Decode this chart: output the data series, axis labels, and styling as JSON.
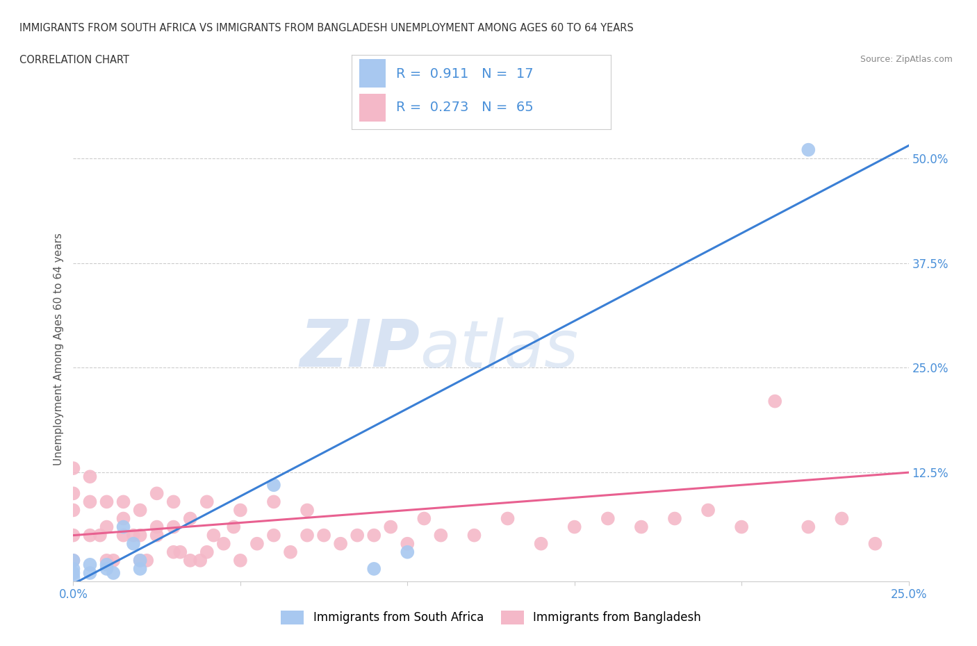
{
  "title_line1": "IMMIGRANTS FROM SOUTH AFRICA VS IMMIGRANTS FROM BANGLADESH UNEMPLOYMENT AMONG AGES 60 TO 64 YEARS",
  "title_line2": "CORRELATION CHART",
  "source": "Source: ZipAtlas.com",
  "ylabel": "Unemployment Among Ages 60 to 64 years",
  "xlim": [
    0.0,
    0.25
  ],
  "ylim": [
    -0.005,
    0.55
  ],
  "r_sa": 0.911,
  "n_sa": 17,
  "r_bd": 0.273,
  "n_bd": 65,
  "color_sa": "#a8c8f0",
  "color_bd": "#f4b8c8",
  "line_color_sa": "#3a7fd5",
  "line_color_bd": "#e86090",
  "tick_color": "#4a90d9",
  "sa_x": [
    0.0,
    0.0,
    0.0,
    0.0,
    0.005,
    0.005,
    0.01,
    0.01,
    0.012,
    0.015,
    0.018,
    0.02,
    0.02,
    0.06,
    0.09,
    0.1,
    0.22
  ],
  "sa_y": [
    0.0,
    0.005,
    0.01,
    0.02,
    0.005,
    0.015,
    0.01,
    0.015,
    0.005,
    0.06,
    0.04,
    0.01,
    0.02,
    0.11,
    0.01,
    0.03,
    0.51
  ],
  "bd_x": [
    0.0,
    0.0,
    0.0,
    0.0,
    0.0,
    0.005,
    0.005,
    0.005,
    0.008,
    0.01,
    0.01,
    0.01,
    0.012,
    0.015,
    0.015,
    0.015,
    0.018,
    0.02,
    0.02,
    0.02,
    0.022,
    0.025,
    0.025,
    0.025,
    0.03,
    0.03,
    0.03,
    0.032,
    0.035,
    0.035,
    0.038,
    0.04,
    0.04,
    0.042,
    0.045,
    0.048,
    0.05,
    0.05,
    0.055,
    0.06,
    0.06,
    0.065,
    0.07,
    0.07,
    0.075,
    0.08,
    0.085,
    0.09,
    0.095,
    0.1,
    0.105,
    0.11,
    0.12,
    0.13,
    0.14,
    0.15,
    0.16,
    0.17,
    0.18,
    0.19,
    0.2,
    0.21,
    0.22,
    0.23,
    0.24
  ],
  "bd_y": [
    0.02,
    0.05,
    0.08,
    0.1,
    0.13,
    0.05,
    0.09,
    0.12,
    0.05,
    0.02,
    0.06,
    0.09,
    0.02,
    0.05,
    0.07,
    0.09,
    0.05,
    0.02,
    0.05,
    0.08,
    0.02,
    0.05,
    0.06,
    0.1,
    0.03,
    0.06,
    0.09,
    0.03,
    0.02,
    0.07,
    0.02,
    0.03,
    0.09,
    0.05,
    0.04,
    0.06,
    0.02,
    0.08,
    0.04,
    0.05,
    0.09,
    0.03,
    0.05,
    0.08,
    0.05,
    0.04,
    0.05,
    0.05,
    0.06,
    0.04,
    0.07,
    0.05,
    0.05,
    0.07,
    0.04,
    0.06,
    0.07,
    0.06,
    0.07,
    0.08,
    0.06,
    0.21,
    0.06,
    0.07,
    0.04
  ],
  "sa_line_x": [
    0.0,
    0.25
  ],
  "sa_line_y": [
    -0.008,
    0.515
  ],
  "bd_line_x": [
    0.0,
    0.25
  ],
  "bd_line_y": [
    0.05,
    0.125
  ],
  "watermark1": "ZIP",
  "watermark2": "atlas",
  "legend_label_sa": "Immigrants from South Africa",
  "legend_label_bd": "Immigrants from Bangladesh"
}
